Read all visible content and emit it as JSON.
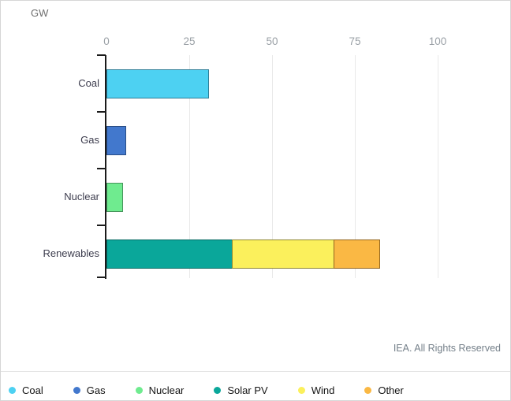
{
  "chart": {
    "unit_label": "GW"
  },
  "footer": {
    "credit": "IEA. All Rights Reserved"
  },
  "chart_data": {
    "type": "bar",
    "orientation": "horizontal",
    "stacked": true,
    "unit": "GW",
    "title": "",
    "xlabel": "GW",
    "ylabel": "",
    "xlim": [
      0,
      110
    ],
    "grid": true,
    "x_ticks": [
      0,
      25,
      50,
      75,
      100
    ],
    "categories": [
      "Coal",
      "Gas",
      "Nuclear",
      "Renewables"
    ],
    "rows": [
      {
        "category": "Coal",
        "segments": [
          {
            "series": "Coal",
            "value": 31
          }
        ]
      },
      {
        "category": "Gas",
        "segments": [
          {
            "series": "Gas",
            "value": 6
          }
        ]
      },
      {
        "category": "Nuclear",
        "segments": [
          {
            "series": "Nuclear",
            "value": 5
          }
        ]
      },
      {
        "category": "Renewables",
        "segments": [
          {
            "series": "Solar PV",
            "value": 38
          },
          {
            "series": "Wind",
            "value": 31
          },
          {
            "series": "Other",
            "value": 14
          }
        ]
      }
    ],
    "series_colors": {
      "Coal": {
        "fill": "#4DD1F2",
        "stroke": "#2F7E97"
      },
      "Gas": {
        "fill": "#4278CD",
        "stroke": "#2A4E86"
      },
      "Nuclear": {
        "fill": "#6FEB8F",
        "stroke": "#46945B"
      },
      "Solar PV": {
        "fill": "#0AA79A",
        "stroke": "#076B63"
      },
      "Wind": {
        "fill": "#FBF05C",
        "stroke": "#8F8834"
      },
      "Other": {
        "fill": "#FAB844",
        "stroke": "#93661F"
      }
    },
    "legend": {
      "position": "bottom",
      "entries": [
        "Coal",
        "Gas",
        "Nuclear",
        "Solar PV",
        "Wind",
        "Other"
      ]
    }
  }
}
